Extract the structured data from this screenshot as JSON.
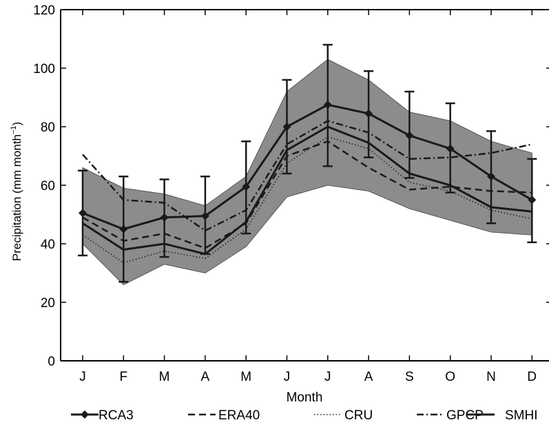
{
  "chart_data": {
    "type": "line",
    "xlabel": "Month",
    "ylabel_main": "Precipitation (mm month",
    "ylabel_sup": "−1",
    "ylabel_close": ")",
    "categories": [
      "J",
      "F",
      "M",
      "A",
      "M",
      "J",
      "J",
      "A",
      "S",
      "O",
      "N",
      "D"
    ],
    "ylim": [
      0,
      120
    ],
    "yticks": [
      "0",
      "20",
      "40",
      "60",
      "80",
      "100",
      "120"
    ],
    "ytick_values": [
      0,
      20,
      40,
      60,
      80,
      100,
      120
    ],
    "grid": false,
    "legend_position": "bottom",
    "envelope": {
      "upper": [
        66,
        59,
        57,
        53,
        63,
        92,
        103,
        96,
        85,
        82,
        75,
        71
      ],
      "lower": [
        40,
        26,
        33,
        30,
        39,
        56,
        60,
        58,
        52,
        48,
        44,
        43
      ]
    },
    "series": [
      {
        "name": "RCA3",
        "style": "marker",
        "color": "#1a1a1a",
        "values": [
          50.5,
          45,
          49,
          49.5,
          59.5,
          80,
          87.5,
          84.5,
          77,
          72.5,
          63,
          55
        ],
        "err_low": [
          36,
          27,
          35.5,
          36.5,
          43.5,
          64,
          66.5,
          69.5,
          62.5,
          57.5,
          47,
          40.5
        ],
        "err_high": [
          65,
          63,
          62,
          63,
          75,
          96,
          108,
          99,
          92,
          88,
          78.5,
          69
        ]
      },
      {
        "name": "ERA40",
        "style": "dashed",
        "color": "#1a1a1a",
        "values": [
          49,
          41,
          43.5,
          38.5,
          47,
          70,
          75,
          66,
          58.5,
          59.5,
          58,
          57.5
        ]
      },
      {
        "name": "CRU",
        "style": "dotted",
        "color": "#1a1a1a",
        "values": [
          43,
          33.5,
          37.5,
          35,
          45,
          67.5,
          76.5,
          72.5,
          61,
          58,
          51.5,
          48.5
        ]
      },
      {
        "name": "GPCP",
        "style": "dashdot",
        "color": "#1a1a1a",
        "values": [
          70.5,
          55,
          54,
          44.5,
          51.5,
          74,
          82,
          78,
          69,
          69.5,
          71,
          74
        ]
      },
      {
        "name": "SMHI",
        "style": "solid",
        "color": "#1a1a1a",
        "values": [
          47,
          38,
          40,
          36.5,
          47.5,
          72,
          80,
          74.5,
          64,
          60,
          52.5,
          51
        ]
      }
    ],
    "colors": {
      "envelope": "#8c8c8c",
      "line": "#1a1a1a",
      "axis": "#000000"
    }
  }
}
